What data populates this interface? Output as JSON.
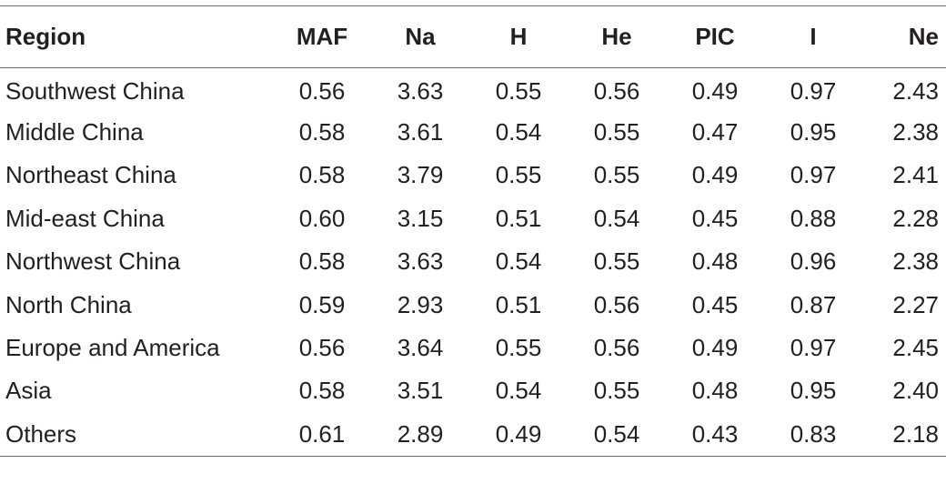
{
  "table": {
    "headers": [
      "Region",
      "MAF",
      "Na",
      "H",
      "He",
      "PIC",
      "I",
      "Ne"
    ],
    "rows": [
      [
        "Southwest China",
        "0.56",
        "3.63",
        "0.55",
        "0.56",
        "0.49",
        "0.97",
        "2.43"
      ],
      [
        "Middle China",
        "0.58",
        "3.61",
        "0.54",
        "0.55",
        "0.47",
        "0.95",
        "2.38"
      ],
      [
        "Northeast China",
        "0.58",
        "3.79",
        "0.55",
        "0.55",
        "0.49",
        "0.97",
        "2.41"
      ],
      [
        "Mid-east China",
        "0.60",
        "3.15",
        "0.51",
        "0.54",
        "0.45",
        "0.88",
        "2.28"
      ],
      [
        "Northwest China",
        "0.58",
        "3.63",
        "0.54",
        "0.55",
        "0.48",
        "0.96",
        "2.38"
      ],
      [
        "North China",
        "0.59",
        "2.93",
        "0.51",
        "0.56",
        "0.45",
        "0.87",
        "2.27"
      ],
      [
        "Europe and America",
        "0.56",
        "3.64",
        "0.55",
        "0.56",
        "0.49",
        "0.97",
        "2.45"
      ],
      [
        "Asia",
        "0.58",
        "3.51",
        "0.54",
        "0.55",
        "0.48",
        "0.95",
        "2.40"
      ],
      [
        "Others",
        "0.61",
        "2.89",
        "0.49",
        "0.54",
        "0.43",
        "0.83",
        "2.18"
      ]
    ]
  },
  "colors": {
    "text": "#231f20",
    "rule": "#6d6e71",
    "background": "#ffffff"
  }
}
